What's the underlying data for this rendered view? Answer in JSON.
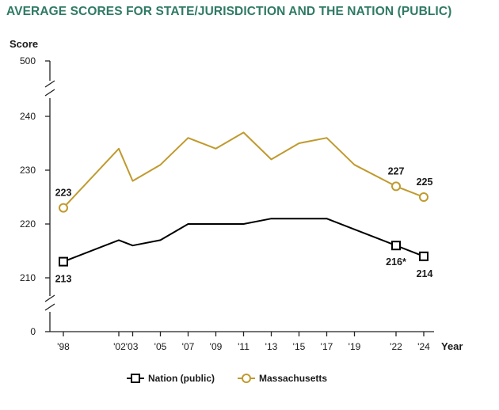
{
  "chart_data": {
    "type": "line",
    "title": "AVERAGE SCORES FOR STATE/JURISDICTION AND THE NATION (PUBLIC)",
    "ylabel": "Score",
    "xlabel": "Year",
    "y_ticks": [
      "0",
      "210",
      "220",
      "230",
      "240",
      "500"
    ],
    "y_range": [
      205,
      245
    ],
    "y_axis_break": true,
    "x": [
      "'98",
      "'02",
      "'03",
      "'05",
      "'07",
      "'09",
      "'11",
      "'13",
      "'15",
      "'17",
      "'19",
      "'22",
      "'24"
    ],
    "x_years": [
      1998,
      2002,
      2003,
      2005,
      2007,
      2009,
      2011,
      2013,
      2015,
      2017,
      2019,
      2022,
      2024
    ],
    "x_tick_labels": [
      "'98",
      "'02'03",
      "'05",
      "'07",
      "'09",
      "'11",
      "'13",
      "'15",
      "'17",
      "'19",
      "'22",
      "'24"
    ],
    "series": [
      {
        "name": "Nation (public)",
        "color": "#000000",
        "marker": "square",
        "values": [
          213,
          217,
          216,
          217,
          220,
          220,
          220,
          221,
          221,
          221,
          219,
          216,
          214
        ]
      },
      {
        "name": "Massachusetts",
        "color": "#c09a2e",
        "marker": "circle",
        "values": [
          223,
          234,
          228,
          231,
          236,
          234,
          237,
          232,
          235,
          236,
          231,
          227,
          225
        ]
      }
    ],
    "data_labels": [
      {
        "series": "Nation (public)",
        "year": 1998,
        "text": "213"
      },
      {
        "series": "Nation (public)",
        "year": 2022,
        "text": "216*"
      },
      {
        "series": "Nation (public)",
        "year": 2024,
        "text": "214"
      },
      {
        "series": "Massachusetts",
        "year": 1998,
        "text": "223"
      },
      {
        "series": "Massachusetts",
        "year": 2022,
        "text": "227"
      },
      {
        "series": "Massachusetts",
        "year": 2024,
        "text": "225"
      }
    ],
    "markers_shown_at": [
      1998,
      2022,
      2024
    ],
    "legend_position": "bottom-center",
    "grid": false
  }
}
